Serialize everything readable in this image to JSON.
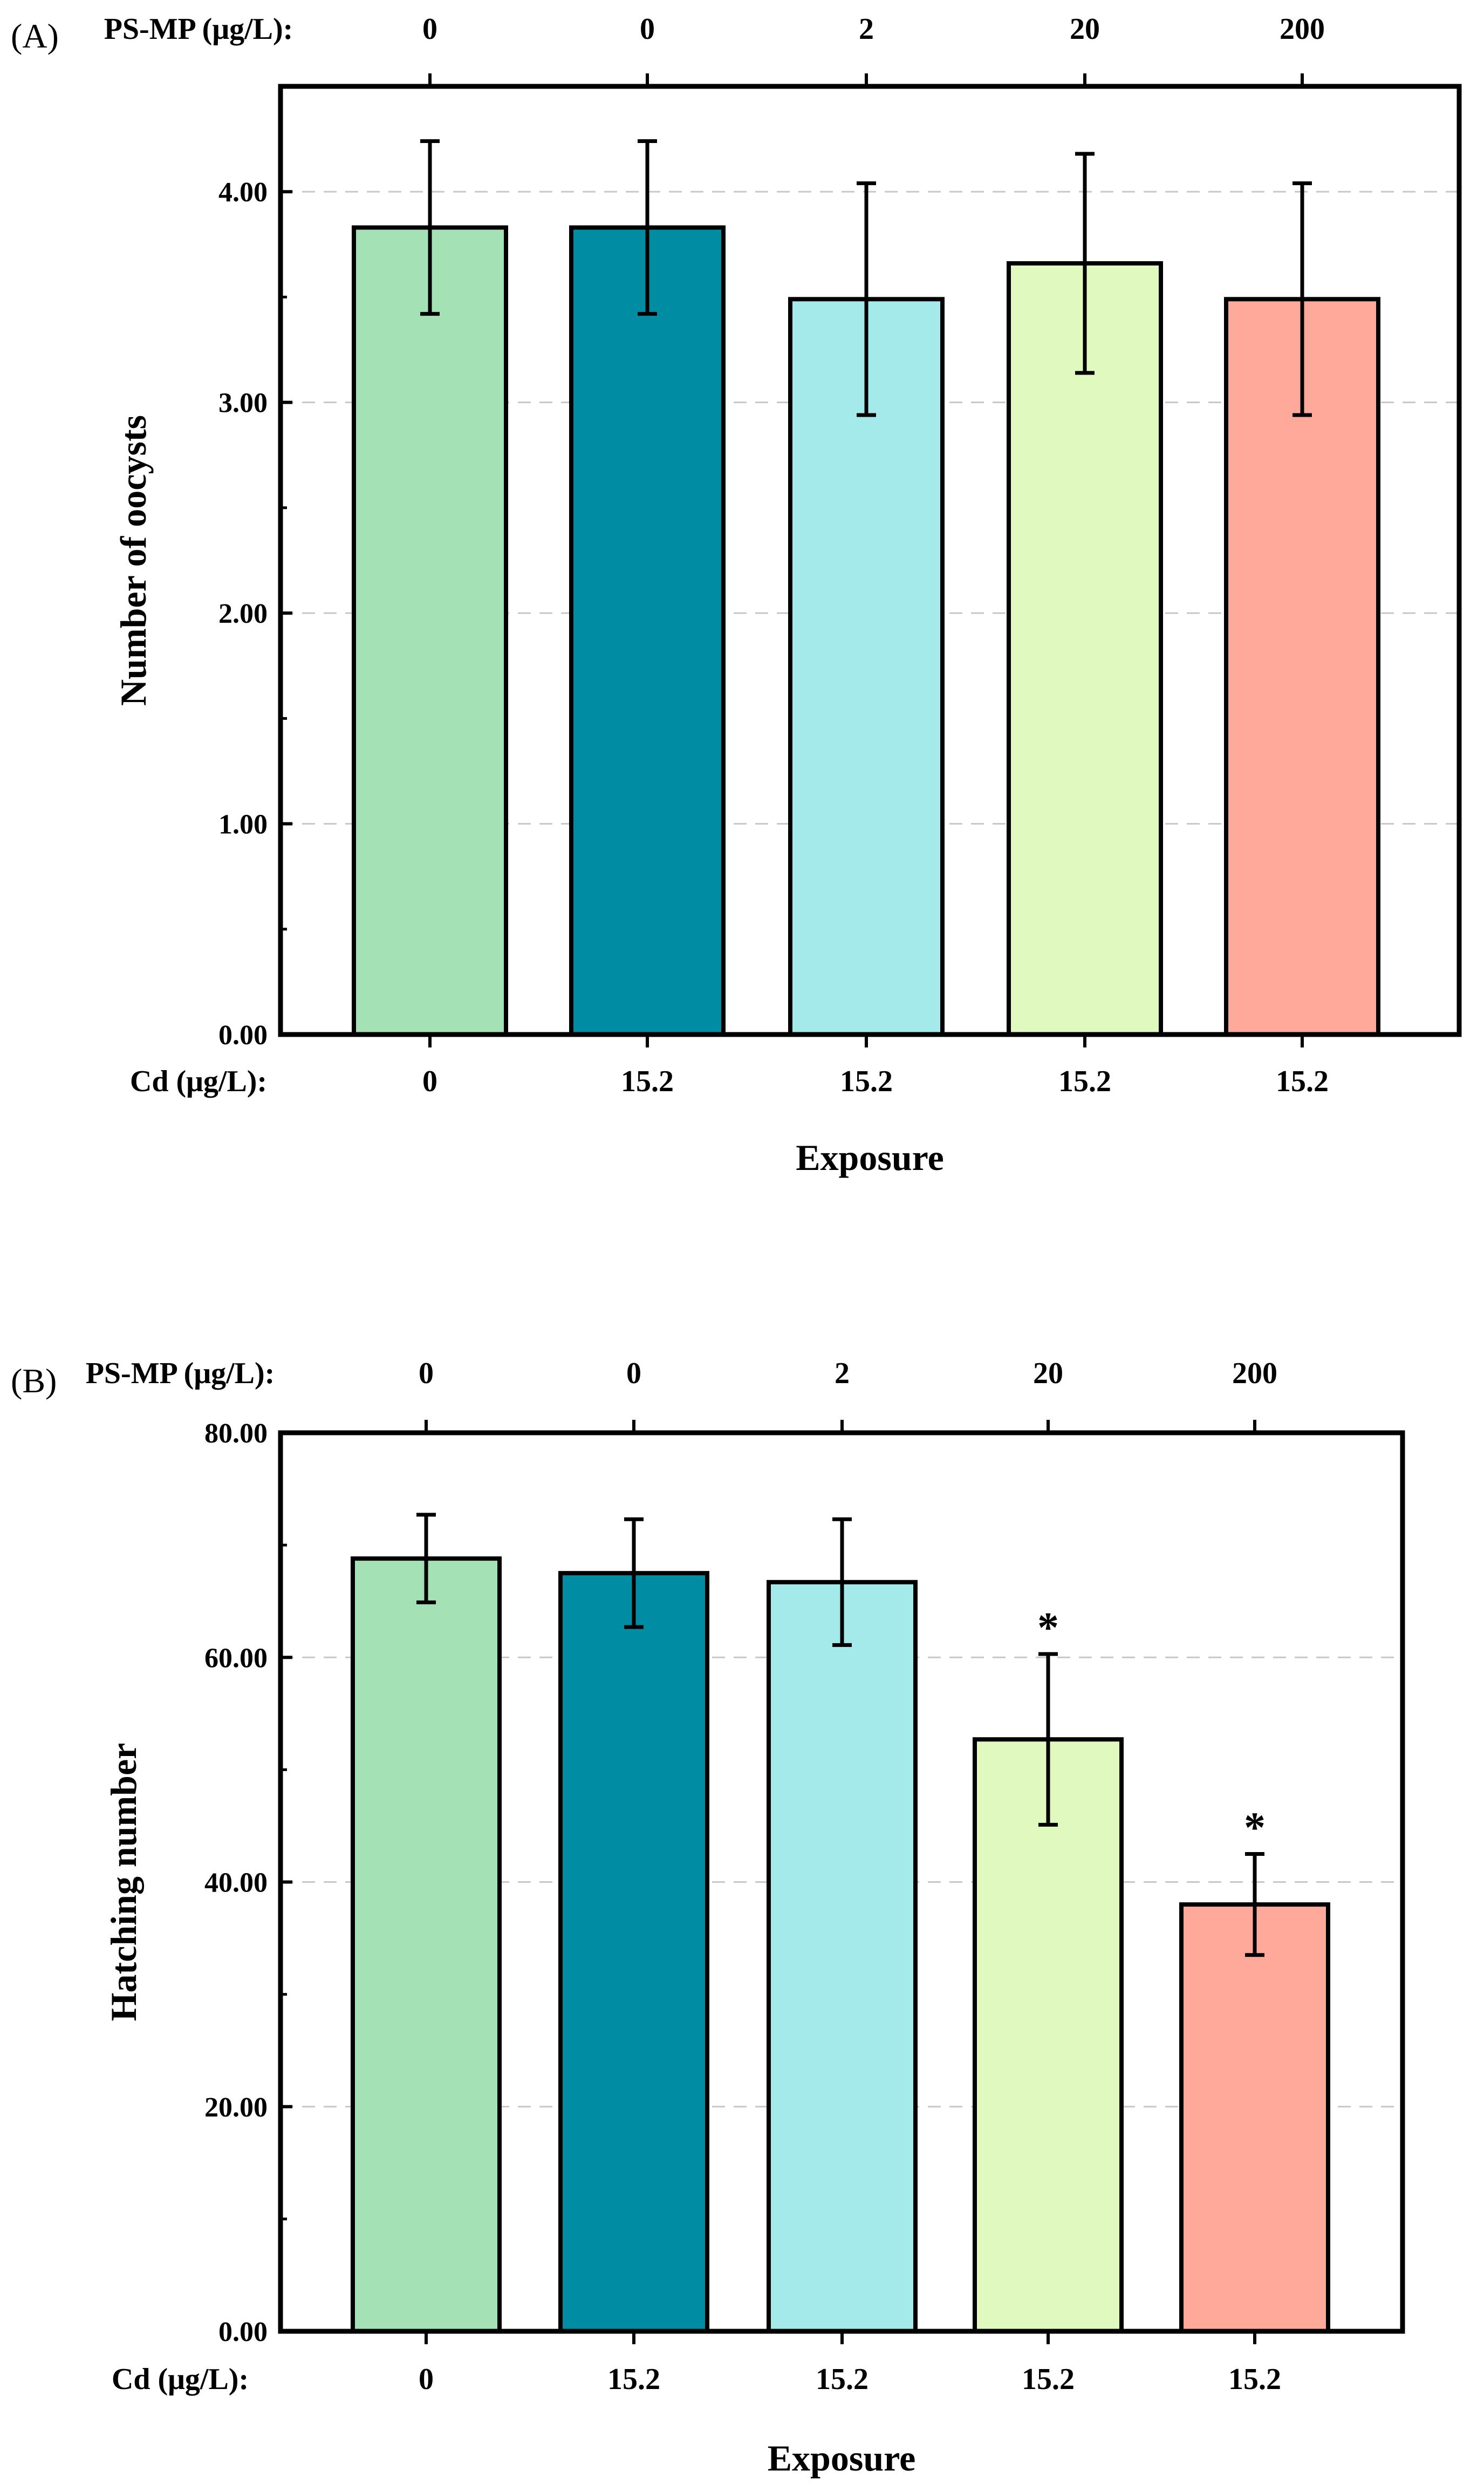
{
  "colors": {
    "bars": [
      "#a4e2b6",
      "#008ca2",
      "#a5eaeb",
      "#dff9be",
      "#ffa99a"
    ],
    "axis": "#000000",
    "grid": "#c8c8c8"
  },
  "chart_data": [
    {
      "type": "bar",
      "panel": "(A)",
      "top_axis_label": "PS-MP (μg/L):",
      "top_labels": [
        "0",
        "0",
        "2",
        "20",
        "200"
      ],
      "bottom_axis_label": "Cd (μg/L):",
      "categories": [
        "0",
        "15.2",
        "15.2",
        "15.2",
        "15.2"
      ],
      "values": [
        3.83,
        3.83,
        3.49,
        3.66,
        3.49
      ],
      "errors": [
        0.41,
        0.41,
        0.55,
        0.52,
        0.55
      ],
      "significance": [
        "",
        "",
        "",
        "",
        ""
      ],
      "xlabel": "Exposure",
      "ylabel": "Number of oocysts",
      "ylim": [
        0,
        4.5
      ],
      "yticks": [
        "0.00",
        "1.00",
        "2.00",
        "3.00",
        "4.00"
      ],
      "grid": true
    },
    {
      "type": "bar",
      "panel": "(B)",
      "top_axis_label": "PS-MP (μg/L):",
      "top_labels": [
        "0",
        "0",
        "2",
        "20",
        "200"
      ],
      "bottom_axis_label": "Cd (μg/L):",
      "categories": [
        "0",
        "15.2",
        "15.2",
        "15.2",
        "15.2"
      ],
      "values": [
        68.8,
        67.5,
        66.7,
        52.7,
        38.0
      ],
      "errors": [
        3.9,
        4.8,
        5.6,
        7.6,
        4.5
      ],
      "significance": [
        "",
        "",
        "",
        "*",
        "*"
      ],
      "xlabel": "Exposure",
      "ylabel": "Hatching number",
      "ylim": [
        0,
        80
      ],
      "yticks": [
        "0.00",
        "20.00",
        "40.00",
        "60.00",
        "80.00"
      ],
      "grid": true
    }
  ]
}
